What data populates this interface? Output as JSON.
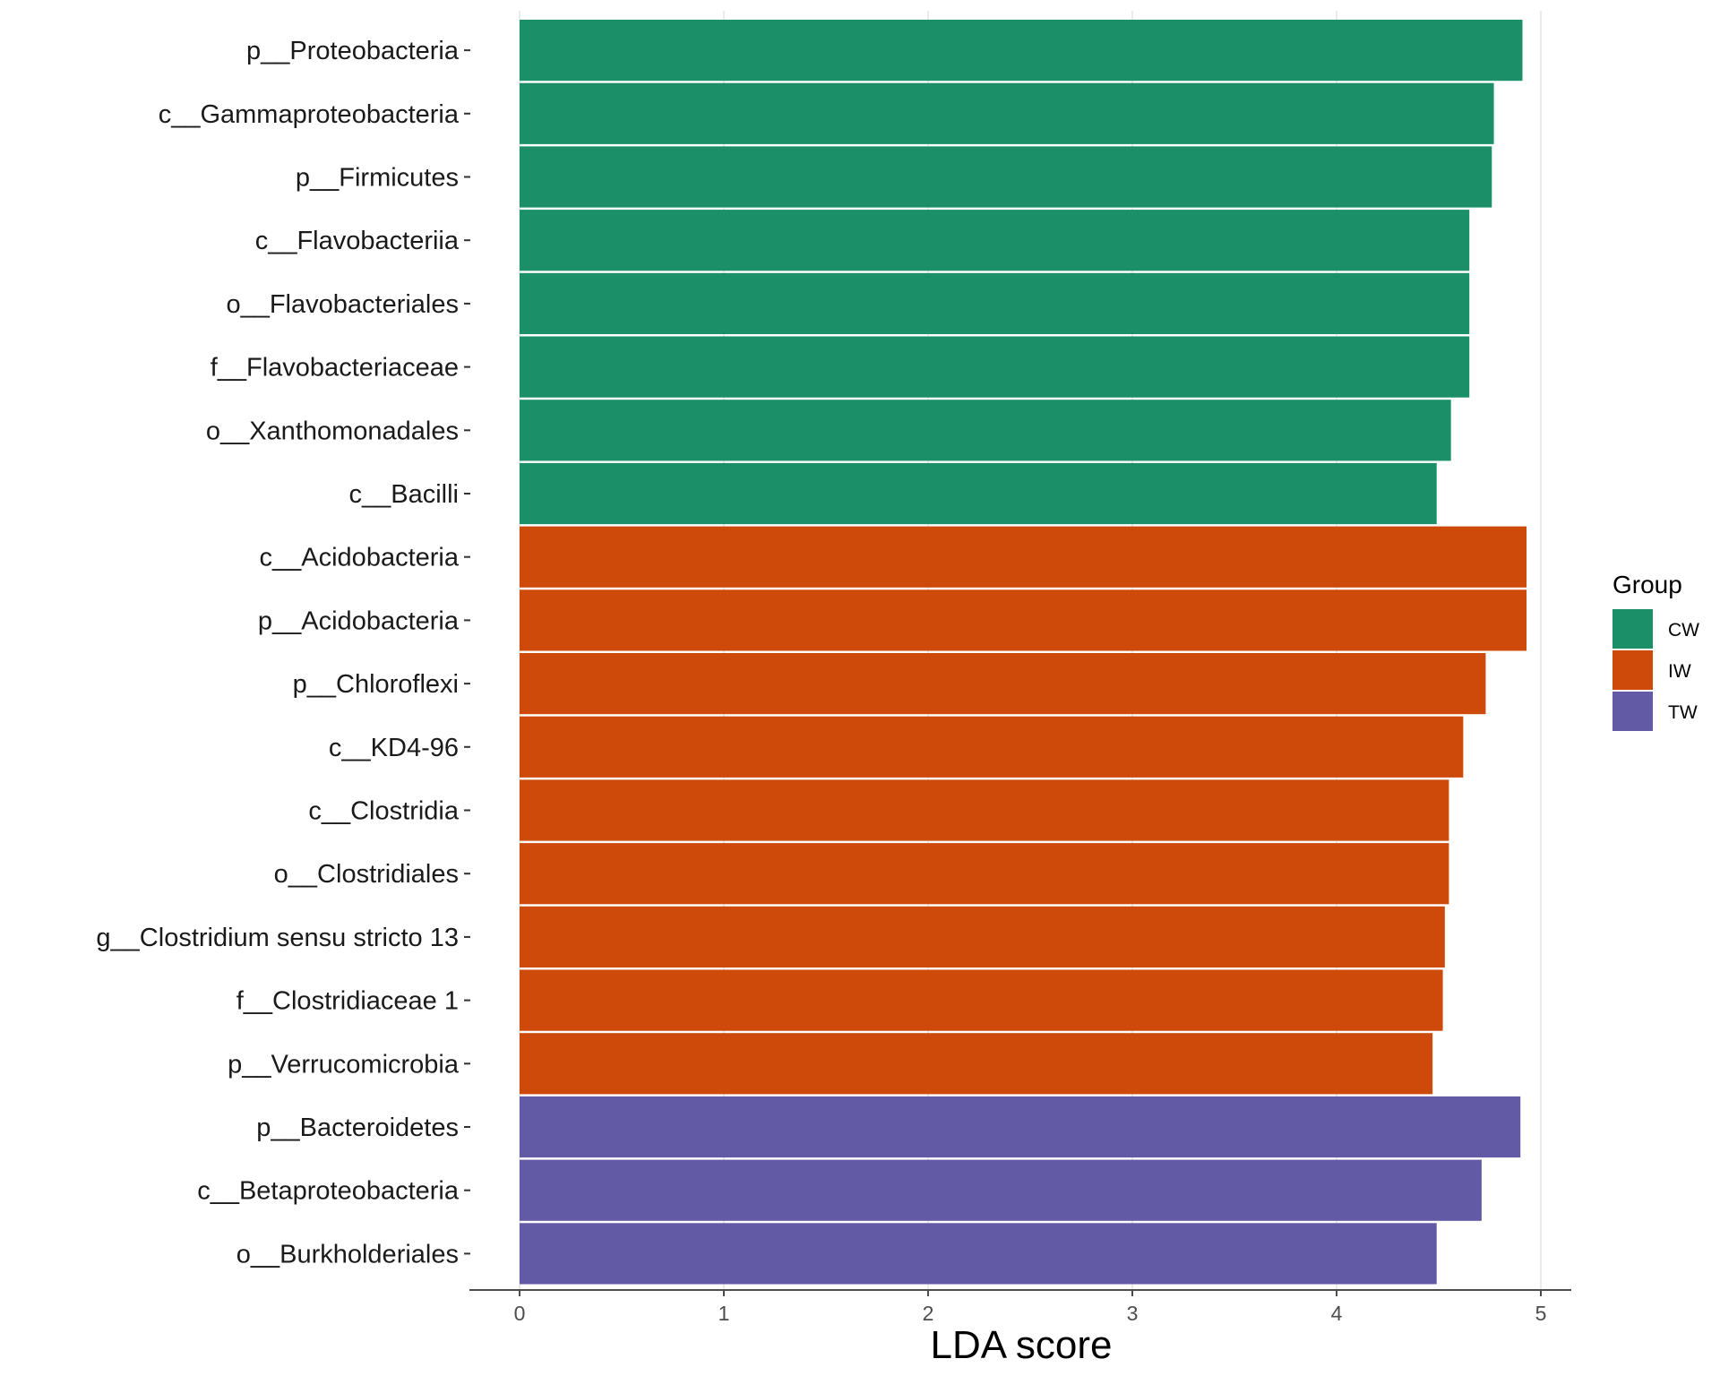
{
  "chart_data": {
    "type": "bar",
    "orientation": "horizontal",
    "title": "",
    "xlabel": "LDA score",
    "ylabel": "",
    "xlim": [
      0,
      5
    ],
    "xticks": [
      0,
      1,
      2,
      3,
      4,
      5
    ],
    "grid": "vertical major",
    "legend": {
      "title": "Group",
      "position": "right",
      "entries": [
        {
          "name": "CW",
          "color": "#1b9068"
        },
        {
          "name": "IW",
          "color": "#cd4a0a"
        },
        {
          "name": "TW",
          "color": "#625aa4"
        }
      ]
    },
    "bars": [
      {
        "label": "p__Proteobacteria",
        "value": 4.91,
        "group": "CW"
      },
      {
        "label": "c__Gammaproteobacteria",
        "value": 4.77,
        "group": "CW"
      },
      {
        "label": "p__Firmicutes",
        "value": 4.76,
        "group": "CW"
      },
      {
        "label": "c__Flavobacteriia",
        "value": 4.65,
        "group": "CW"
      },
      {
        "label": "o__Flavobacteriales",
        "value": 4.65,
        "group": "CW"
      },
      {
        "label": "f__Flavobacteriaceae",
        "value": 4.65,
        "group": "CW"
      },
      {
        "label": "o__Xanthomonadales",
        "value": 4.56,
        "group": "CW"
      },
      {
        "label": "c__Bacilli",
        "value": 4.49,
        "group": "CW"
      },
      {
        "label": "c__Acidobacteria",
        "value": 4.93,
        "group": "IW"
      },
      {
        "label": "p__Acidobacteria",
        "value": 4.93,
        "group": "IW"
      },
      {
        "label": "p__Chloroflexi",
        "value": 4.73,
        "group": "IW"
      },
      {
        "label": "c__KD4-96",
        "value": 4.62,
        "group": "IW"
      },
      {
        "label": "c__Clostridia",
        "value": 4.55,
        "group": "IW"
      },
      {
        "label": "o__Clostridiales",
        "value": 4.55,
        "group": "IW"
      },
      {
        "label": "g__Clostridium sensu stricto 13",
        "value": 4.53,
        "group": "IW"
      },
      {
        "label": "f__Clostridiaceae 1",
        "value": 4.52,
        "group": "IW"
      },
      {
        "label": "p__Verrucomicrobia",
        "value": 4.47,
        "group": "IW"
      },
      {
        "label": "p__Bacteroidetes",
        "value": 4.9,
        "group": "TW"
      },
      {
        "label": "c__Betaproteobacteria",
        "value": 4.71,
        "group": "TW"
      },
      {
        "label": "o__Burkholderiales",
        "value": 4.49,
        "group": "TW"
      }
    ]
  }
}
